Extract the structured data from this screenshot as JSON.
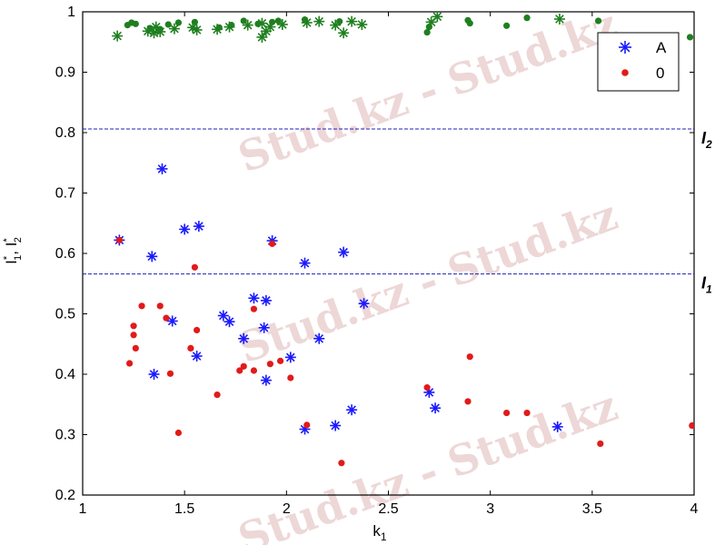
{
  "chart_data": {
    "type": "scatter",
    "xlabel": "k",
    "xlabel_sub": "1",
    "ylabel_parts": [
      "I",
      "*",
      "1",
      ", I",
      "*",
      "2"
    ],
    "xlim": [
      1,
      4
    ],
    "ylim": [
      0.2,
      1.0
    ],
    "xticks": [
      1,
      1.5,
      2,
      2.5,
      3,
      3.5,
      4
    ],
    "xtick_labels": [
      "1",
      "1.5",
      "2",
      "2.5",
      "3",
      "3.5",
      "4"
    ],
    "yticks": [
      0.2,
      0.3,
      0.4,
      0.5,
      0.6,
      0.7,
      0.8,
      0.9,
      1.0
    ],
    "ytick_labels": [
      "0.2",
      "0.3",
      "0.4",
      "0.5",
      "0.6",
      "0.7",
      "0.8",
      "0.9",
      "1"
    ],
    "legend_position": "top-right",
    "hlines": [
      {
        "y": 0.806,
        "label": "I",
        "sub": "2",
        "color": "#1f1fbf"
      },
      {
        "y": 0.566,
        "label": "I",
        "sub": "1",
        "color": "#1f1fbf"
      }
    ],
    "series": [
      {
        "name": "A",
        "marker": "star",
        "color": "#1a1aff",
        "points": [
          [
            1.18,
            0.622
          ],
          [
            1.34,
            0.595
          ],
          [
            1.39,
            0.74
          ],
          [
            1.5,
            0.64
          ],
          [
            1.57,
            0.645
          ],
          [
            1.93,
            0.621
          ],
          [
            2.09,
            0.584
          ],
          [
            2.28,
            0.602
          ],
          [
            1.35,
            0.4
          ],
          [
            1.44,
            0.488
          ],
          [
            1.56,
            0.43
          ],
          [
            1.69,
            0.497
          ],
          [
            1.72,
            0.487
          ],
          [
            1.79,
            0.459
          ],
          [
            1.84,
            0.526
          ],
          [
            1.9,
            0.522
          ],
          [
            1.89,
            0.477
          ],
          [
            1.9,
            0.39
          ],
          [
            2.02,
            0.428
          ],
          [
            2.16,
            0.459
          ],
          [
            2.38,
            0.517
          ],
          [
            2.09,
            0.309
          ],
          [
            2.24,
            0.315
          ],
          [
            2.32,
            0.341
          ],
          [
            2.7,
            0.37
          ],
          [
            2.73,
            0.344
          ],
          [
            3.33,
            0.313
          ]
        ]
      },
      {
        "name": "0",
        "marker": "dot",
        "color": "#e21a1a",
        "points": [
          [
            1.18,
            0.622
          ],
          [
            1.55,
            0.577
          ],
          [
            1.93,
            0.616
          ],
          [
            1.29,
            0.513
          ],
          [
            1.38,
            0.513
          ],
          [
            1.41,
            0.493
          ],
          [
            1.25,
            0.48
          ],
          [
            1.25,
            0.465
          ],
          [
            1.26,
            0.443
          ],
          [
            1.23,
            0.418
          ],
          [
            1.43,
            0.401
          ],
          [
            1.47,
            0.303
          ],
          [
            1.53,
            0.443
          ],
          [
            1.56,
            0.473
          ],
          [
            1.66,
            0.366
          ],
          [
            1.77,
            0.406
          ],
          [
            1.79,
            0.413
          ],
          [
            1.84,
            0.406
          ],
          [
            1.84,
            0.508
          ],
          [
            1.92,
            0.417
          ],
          [
            1.97,
            0.422
          ],
          [
            2.02,
            0.394
          ],
          [
            2.1,
            0.316
          ],
          [
            2.27,
            0.253
          ],
          [
            2.69,
            0.378
          ],
          [
            2.89,
            0.355
          ],
          [
            2.9,
            0.429
          ],
          [
            3.08,
            0.336
          ],
          [
            3.18,
            0.336
          ],
          [
            3.54,
            0.285
          ],
          [
            3.99,
            0.315
          ]
        ]
      },
      {
        "marker": "star",
        "color": "#1f7f1f",
        "points": [
          [
            1.17,
            0.96
          ],
          [
            1.32,
            0.968
          ],
          [
            1.35,
            0.965
          ],
          [
            1.38,
            0.967
          ],
          [
            1.45,
            0.972
          ],
          [
            1.54,
            0.974
          ],
          [
            1.66,
            0.971
          ],
          [
            1.72,
            0.975
          ],
          [
            1.81,
            0.978
          ],
          [
            1.88,
            0.981
          ],
          [
            1.9,
            0.968
          ],
          [
            1.92,
            0.975
          ],
          [
            1.98,
            0.979
          ],
          [
            2.1,
            0.982
          ],
          [
            2.16,
            0.984
          ],
          [
            2.24,
            0.978
          ],
          [
            2.28,
            0.965
          ],
          [
            2.32,
            0.984
          ],
          [
            2.37,
            0.979
          ],
          [
            2.71,
            0.983
          ],
          [
            2.74,
            0.992
          ],
          [
            3.34,
            0.988
          ],
          [
            1.88,
            0.958
          ],
          [
            1.56,
            0.97
          ],
          [
            1.36,
            0.975
          ]
        ]
      },
      {
        "marker": "dot",
        "color": "#1f7f1f",
        "points": [
          [
            1.22,
            0.978
          ],
          [
            1.24,
            0.982
          ],
          [
            1.26,
            0.98
          ],
          [
            1.33,
            0.973
          ],
          [
            1.38,
            0.971
          ],
          [
            1.42,
            0.979
          ],
          [
            1.47,
            0.982
          ],
          [
            1.55,
            0.983
          ],
          [
            1.67,
            0.974
          ],
          [
            1.73,
            0.978
          ],
          [
            1.79,
            0.985
          ],
          [
            1.86,
            0.98
          ],
          [
            1.93,
            0.983
          ],
          [
            1.96,
            0.985
          ],
          [
            2.09,
            0.987
          ],
          [
            2.26,
            0.984
          ],
          [
            2.69,
            0.966
          ],
          [
            2.7,
            0.975
          ],
          [
            2.89,
            0.986
          ],
          [
            2.9,
            0.981
          ],
          [
            3.08,
            0.977
          ],
          [
            3.18,
            0.99
          ],
          [
            3.53,
            0.985
          ],
          [
            3.98,
            0.958
          ]
        ]
      }
    ]
  },
  "watermark_text": "Stud.kz - Stud.kz"
}
